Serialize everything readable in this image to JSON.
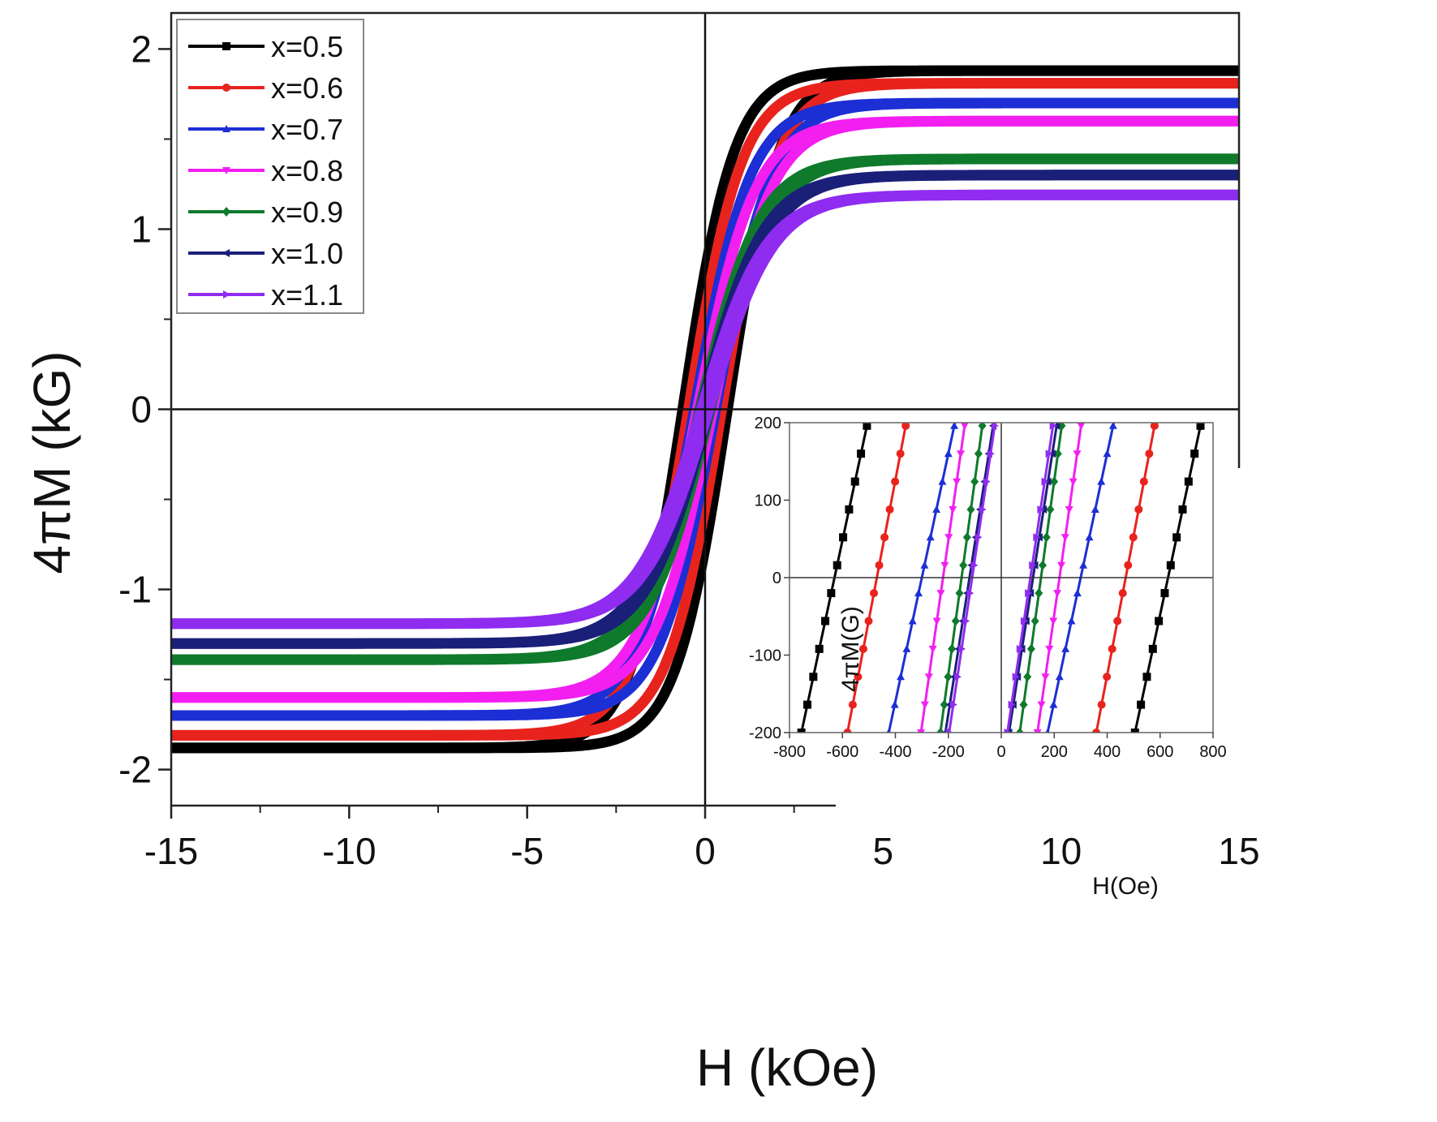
{
  "chart_data": [
    {
      "name": "main",
      "type": "line",
      "title": "",
      "xlabel": "H (kOe)",
      "ylabel": "4πM (kG)",
      "xlim": [
        -15,
        15
      ],
      "ylim": [
        -2.2,
        2.2
      ],
      "xticks": [
        -15,
        -10,
        -5,
        0,
        5,
        10,
        15
      ],
      "xtick_labels": [
        "-15",
        "-10",
        "-5",
        "0",
        "5",
        "10",
        "15"
      ],
      "yticks": [
        -2,
        -1,
        0,
        1,
        2
      ],
      "ytick_labels": [
        "-2",
        "-1",
        "0",
        "1",
        "2"
      ],
      "grid": false,
      "legend_position": "top-left",
      "series": [
        {
          "name": "x=0.5",
          "color": "#000000",
          "marker": "square",
          "Ms": 1.88,
          "Hc_kOe": 0.63
        },
        {
          "name": "x=0.6",
          "color": "#e8231d",
          "marker": "circle",
          "Ms": 1.81,
          "Hc_kOe": 0.47
        },
        {
          "name": "x=0.7",
          "color": "#1c2fd4",
          "marker": "triangle-up",
          "Ms": 1.7,
          "Hc_kOe": 0.3
        },
        {
          "name": "x=0.8",
          "color": "#f21ff0",
          "marker": "triangle-down",
          "Ms": 1.6,
          "Hc_kOe": 0.22
        },
        {
          "name": "x=0.9",
          "color": "#0f7a2c",
          "marker": "diamond",
          "Ms": 1.39,
          "Hc_kOe": 0.15
        },
        {
          "name": "x=1.0",
          "color": "#1a1f78",
          "marker": "triangle-left",
          "Ms": 1.3,
          "Hc_kOe": 0.12
        },
        {
          "name": "x=1.1",
          "color": "#8f2cf0",
          "marker": "triangle-right",
          "Ms": 1.19,
          "Hc_kOe": 0.11
        }
      ]
    },
    {
      "name": "inset",
      "type": "line",
      "title": "",
      "xlabel": "H(Oe)",
      "ylabel": "4πM(G)",
      "xlim": [
        -800,
        800
      ],
      "ylim": [
        -200,
        200
      ],
      "xticks": [
        -800,
        -600,
        -400,
        -200,
        0,
        200,
        400,
        600,
        800
      ],
      "xtick_labels": [
        "-800",
        "-600",
        "-400",
        "-200",
        "0",
        "200",
        "400",
        "600",
        "800"
      ],
      "yticks": [
        -200,
        -100,
        0,
        100,
        200
      ],
      "ytick_labels": [
        "-200",
        "-100",
        "0",
        "100",
        "200"
      ],
      "grid": false,
      "series": [
        {
          "name": "x=0.5",
          "color": "#000000",
          "marker": "square",
          "Hc_Oe": 630,
          "slope_G_per_Oe": 1.6
        },
        {
          "name": "x=0.6",
          "color": "#e8231d",
          "marker": "circle",
          "Hc_Oe": 470,
          "slope_G_per_Oe": 1.8
        },
        {
          "name": "x=0.7",
          "color": "#1c2fd4",
          "marker": "triangle-up",
          "Hc_Oe": 300,
          "slope_G_per_Oe": 1.6
        },
        {
          "name": "x=0.8",
          "color": "#f21ff0",
          "marker": "triangle-down",
          "Hc_Oe": 220,
          "slope_G_per_Oe": 2.4
        },
        {
          "name": "x=0.9",
          "color": "#0f7a2c",
          "marker": "diamond",
          "Hc_Oe": 150,
          "slope_G_per_Oe": 2.5
        },
        {
          "name": "x=1.0",
          "color": "#1a1f78",
          "marker": "triangle-left",
          "Hc_Oe": 120,
          "slope_G_per_Oe": 2.2
        },
        {
          "name": "x=1.1",
          "color": "#8f2cf0",
          "marker": "triangle-right",
          "Hc_Oe": 110,
          "slope_G_per_Oe": 2.3
        }
      ]
    }
  ]
}
